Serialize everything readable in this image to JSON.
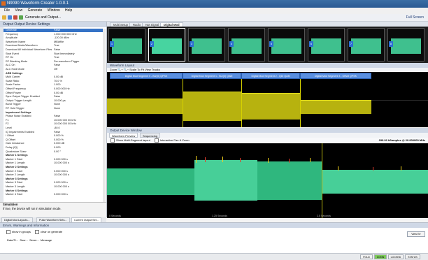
{
  "app": {
    "title": "N9090 Waveform Creator 1.0.0.1"
  },
  "menu": [
    "File",
    "View",
    "Generate",
    "Window",
    "Help"
  ],
  "toolbar": {
    "label": "Generate and Output...",
    "fullscreen": "Full Screen"
  },
  "left_panel": {
    "title": "Output Output Device Settings",
    "rows": [
      {
        "k": "Generate",
        "v": "False",
        "t": "sel"
      },
      {
        "k": "Frequency",
        "v": "1.000 000 000 GHz"
      },
      {
        "k": "Amplitude",
        "v": "-120.00 dBm"
      },
      {
        "k": "Waveform Name",
        "v": "MBWfile"
      },
      {
        "k": "Download Mode/Waveform",
        "v": "True"
      },
      {
        "k": "Download All Individual Waveform Files",
        "v": "False"
      },
      {
        "k": "Start Event",
        "v": "Start Immediately"
      },
      {
        "k": "RF On",
        "v": "True"
      },
      {
        "k": "RF Blanking Mode",
        "v": "Per-waveform Trigger"
      },
      {
        "k": "ALC On",
        "v": "False"
      },
      {
        "k": "ALC Hold Mode",
        "v": "Off"
      },
      {
        "k": "ARB Settings",
        "v": "",
        "t": "cat"
      },
      {
        "k": "Multi Carrier",
        "v": "0.00 dB"
      },
      {
        "k": "Scale Ratio",
        "v": "70.0 %"
      },
      {
        "k": "Scale Factor",
        "v": "1.000"
      },
      {
        "k": "Offset Frequency",
        "v": "0.000 000 Hz"
      },
      {
        "k": "Offset Power",
        "v": "0.00 dB"
      },
      {
        "k": "Sync Output Trigger Enabled",
        "v": "False"
      },
      {
        "k": "Output Trigger Length",
        "v": "10.000 μs"
      },
      {
        "k": "Burst Trigger",
        "v": "None"
      },
      {
        "k": "RF Hold Trigger",
        "v": "None"
      },
      {
        "k": "Impairment Settings",
        "v": "",
        "t": "cat"
      },
      {
        "k": "Phase Noise Enabled",
        "v": "False"
      },
      {
        "k": "F1",
        "v": "10.000 000 00 kHz"
      },
      {
        "k": "F2",
        "v": "10.000 000 00 kHz"
      },
      {
        "k": "Level",
        "v": "-80.0"
      },
      {
        "k": "IQ Impairments Enabled",
        "v": "False"
      },
      {
        "k": "I Offset",
        "v": "0.000 %"
      },
      {
        "k": "Q Offset",
        "v": "0.000 %"
      },
      {
        "k": "Gain Imbalance",
        "v": "0.000 dB"
      },
      {
        "k": "Delay (IQ)",
        "v": "0.000"
      },
      {
        "k": "Quadrature Skew",
        "v": "0.00 °"
      },
      {
        "k": "Marker 1 Settings",
        "v": "",
        "t": "cat"
      },
      {
        "k": "Marker 1 Start",
        "v": "0.000 000 s"
      },
      {
        "k": "Marker 1 Length",
        "v": "10.000 000 s"
      },
      {
        "k": "Marker 2 Settings",
        "v": "",
        "t": "cat"
      },
      {
        "k": "Marker 2 Start",
        "v": "0.000 000 s"
      },
      {
        "k": "Marker 2 Length",
        "v": "10.000 000 s"
      },
      {
        "k": "Marker 3 Settings",
        "v": "",
        "t": "cat"
      },
      {
        "k": "Marker 3 Start",
        "v": "0.000 000 s"
      },
      {
        "k": "Marker 3 Length",
        "v": "10.000 000 s"
      },
      {
        "k": "Marker 4 Settings",
        "v": "",
        "t": "cat"
      },
      {
        "k": "Marker 4 Start",
        "v": "0.000 000 s"
      }
    ],
    "desc_title": "Simulation",
    "desc_text": "If true, the device will run in simulation mode."
  },
  "left_tabs": [
    "Digital Mod Layouts...",
    "Pulse Waveform Sets...",
    "Current Output Set..."
  ],
  "doc_tabs": [
    "Multi Setup",
    "Radio",
    "Not Signal",
    "Digital Mod"
  ],
  "thumb_count": 8,
  "layout_panel": {
    "title": "Waveform Layout",
    "zoom": "Zoom",
    "scale": "Scale To Fit",
    "view": "View Tracks"
  },
  "segments": [
    "Digital Mod Segment 0 - Bur(0) QPSK",
    "Digital Mod Segment 1 - Bur(0) QAM",
    "Digital Mod Segment 2 - QDI QAM",
    "Digital Mod Segment 3 - Offset QPSK"
  ],
  "output_panel": {
    "title": "Output Device Window",
    "tabs": [
      "Waveform Preview",
      "Sequencing"
    ],
    "opt1": "Show Multi-Segment layout",
    "opt2": "Interactive Pan & Zoom",
    "readout": "299.92 kSamples @ 20.000000 MHz",
    "axis": [
      "0 Seconds",
      "1.25 Seconds",
      "2.5 Seconds"
    ]
  },
  "errors_panel": {
    "title": "Errors, Warnings and Information",
    "chk1": "show in groups",
    "chk2": "clear on generate",
    "view_btn": "View Err",
    "columns": [
      "Date/Ti...",
      "Sour...",
      "Sever...",
      "Message"
    ]
  },
  "status": [
    "FOLD",
    "CONN",
    "LOCKED",
    "STATUS"
  ]
}
